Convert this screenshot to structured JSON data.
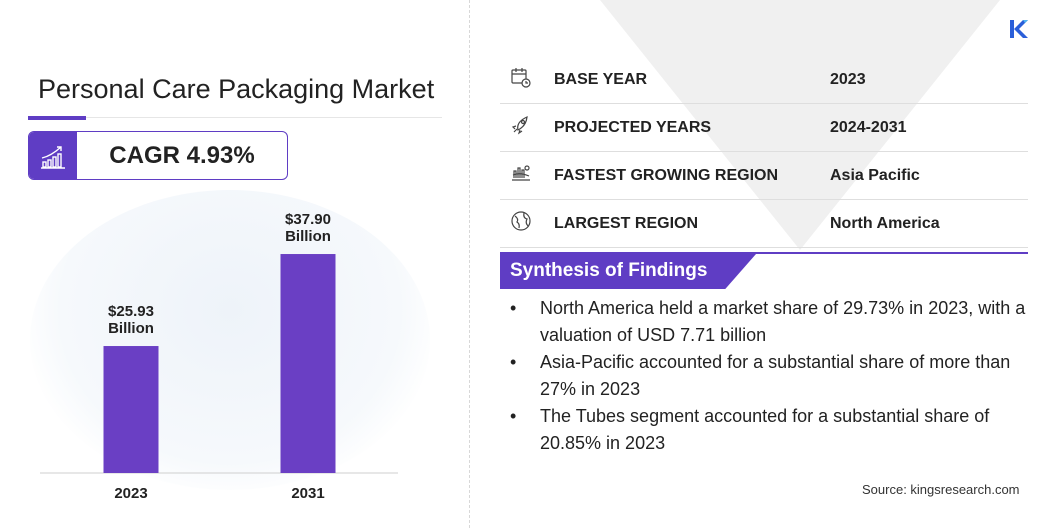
{
  "title": "Personal Care Packaging Market",
  "cagr": "CAGR 4.93%",
  "chart_data": {
    "type": "bar",
    "categories": [
      "2023",
      "2031"
    ],
    "values": [
      25.93,
      37.9
    ],
    "data_labels": [
      [
        "$25.93",
        "Billion"
      ],
      [
        "$37.90",
        "Billion"
      ]
    ],
    "unit": "USD Billion",
    "color": "#6a3fc4"
  },
  "info_rows": [
    {
      "icon": "calendar-clock-icon",
      "label": "BASE YEAR",
      "value": "2023"
    },
    {
      "icon": "rocket-icon",
      "label": "PROJECTED YEARS",
      "value": "2024-2031"
    },
    {
      "icon": "growth-region-icon",
      "label": "FASTEST GROWING REGION",
      "value": "Asia Pacific"
    },
    {
      "icon": "globe-icon",
      "label": "LARGEST REGION",
      "value": "North America"
    }
  ],
  "synthesis": {
    "heading": "Synthesis of Findings",
    "items": [
      "North America held a market share of 29.73% in 2023, with a valuation of USD 7.71 billion",
      "Asia-Pacific accounted for a substantial share of more than 27% in 2023",
      "The Tubes segment accounted for a substantial share of 20.85% in 2023"
    ]
  },
  "source": "Source: kingsresearch.com",
  "logo": "K",
  "accent": "#5f3dc4"
}
